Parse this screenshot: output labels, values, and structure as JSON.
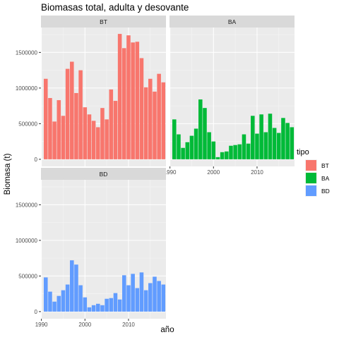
{
  "chart_data": {
    "type": "bar",
    "title": "Biomasas total, adulta y desovante",
    "xlabel": "año",
    "ylabel": "Biomasa (t)",
    "ylim": [
      -100000,
      1850000
    ],
    "xlim": [
      1989.9,
      2018.6
    ],
    "yticks": [
      0,
      500000,
      1000000,
      1500000
    ],
    "ytick_labels": [
      "0",
      "500000",
      "1000000",
      "1500000"
    ],
    "xticks": [
      1990,
      2000,
      2010
    ],
    "xtick_labels": [
      "1990",
      "2000",
      "2010"
    ],
    "grid": true,
    "legend": {
      "title": "tipo",
      "position": "right"
    },
    "x": [
      1991,
      1992,
      1993,
      1994,
      1995,
      1996,
      1997,
      1998,
      1999,
      2000,
      2001,
      2002,
      2003,
      2004,
      2005,
      2006,
      2007,
      2008,
      2009,
      2010,
      2011,
      2012,
      2013,
      2014,
      2015,
      2016,
      2017,
      2018
    ],
    "series": [
      {
        "name": "BT",
        "color": "#F8766D",
        "values": [
          1130000,
          860000,
          530000,
          830000,
          610000,
          1270000,
          1370000,
          930000,
          1250000,
          730000,
          630000,
          540000,
          450000,
          720000,
          560000,
          980000,
          820000,
          1760000,
          1560000,
          1740000,
          1640000,
          1650000,
          1420000,
          1010000,
          1130000,
          950000,
          1200000,
          1080000
        ]
      },
      {
        "name": "BA",
        "color": "#00BA38",
        "values": [
          560000,
          350000,
          160000,
          240000,
          330000,
          430000,
          840000,
          720000,
          380000,
          250000,
          30000,
          100000,
          110000,
          190000,
          200000,
          210000,
          350000,
          220000,
          610000,
          360000,
          630000,
          380000,
          640000,
          440000,
          370000,
          580000,
          510000,
          450000
        ]
      },
      {
        "name": "BD",
        "color": "#619CFF",
        "values": [
          480000,
          280000,
          140000,
          220000,
          300000,
          380000,
          720000,
          660000,
          370000,
          200000,
          60000,
          90000,
          110000,
          90000,
          180000,
          190000,
          260000,
          170000,
          510000,
          370000,
          530000,
          330000,
          550000,
          300000,
          400000,
          490000,
          430000,
          380000
        ]
      }
    ]
  }
}
